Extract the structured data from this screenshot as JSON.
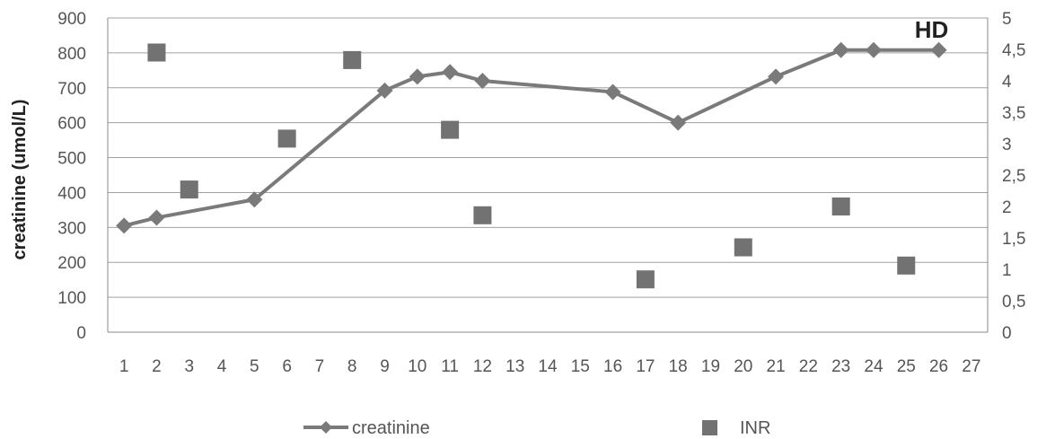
{
  "chart_data": {
    "type": "line",
    "title": "",
    "xlabel": "",
    "ylabel": "creatinine (umol/L)",
    "y2label": "",
    "categories": [
      "1",
      "2",
      "3",
      "4",
      "5",
      "6",
      "7",
      "8",
      "9",
      "10",
      "11",
      "12",
      "13",
      "14",
      "15",
      "16",
      "17",
      "18",
      "19",
      "20",
      "21",
      "22",
      "23",
      "24",
      "25",
      "26",
      "27"
    ],
    "y_ticks": [
      "0",
      "100",
      "200",
      "300",
      "400",
      "500",
      "600",
      "700",
      "800",
      "900"
    ],
    "y2_ticks": [
      "0",
      "0,5",
      "1",
      "1,5",
      "2",
      "2,5",
      "3",
      "3,5",
      "4",
      "4,5",
      "5"
    ],
    "ylim": [
      0,
      900
    ],
    "y2lim": [
      0,
      5
    ],
    "grid": true,
    "legend_position": "bottom",
    "colors": {
      "creatinine": "#7a7a7a",
      "INR": "#727272",
      "grid": "#a0a0a0",
      "axis": "#888888"
    },
    "series": [
      {
        "name": "creatinine",
        "axis": "left",
        "marker": "diamond",
        "points": [
          {
            "x": 1,
            "y": 305
          },
          {
            "x": 2,
            "y": 328
          },
          {
            "x": 5,
            "y": 380
          },
          {
            "x": 9,
            "y": 692
          },
          {
            "x": 10,
            "y": 732
          },
          {
            "x": 11,
            "y": 745
          },
          {
            "x": 12,
            "y": 720
          },
          {
            "x": 16,
            "y": 688
          },
          {
            "x": 18,
            "y": 600
          },
          {
            "x": 21,
            "y": 732
          },
          {
            "x": 23,
            "y": 808
          },
          {
            "x": 24,
            "y": 808
          },
          {
            "x": 26,
            "y": 808
          }
        ]
      },
      {
        "name": "INR",
        "axis": "right",
        "marker": "square",
        "points": [
          {
            "x": 2,
            "y": 4.45
          },
          {
            "x": 3,
            "y": 2.27
          },
          {
            "x": 6,
            "y": 3.08
          },
          {
            "x": 8,
            "y": 4.33
          },
          {
            "x": 11,
            "y": 3.22
          },
          {
            "x": 12,
            "y": 1.86
          },
          {
            "x": 17,
            "y": 0.84
          },
          {
            "x": 20,
            "y": 1.35
          },
          {
            "x": 23,
            "y": 2.0
          },
          {
            "x": 25,
            "y": 1.06
          }
        ]
      }
    ],
    "annotations": [
      {
        "text": "HD",
        "x": 26,
        "y": 900
      }
    ]
  }
}
